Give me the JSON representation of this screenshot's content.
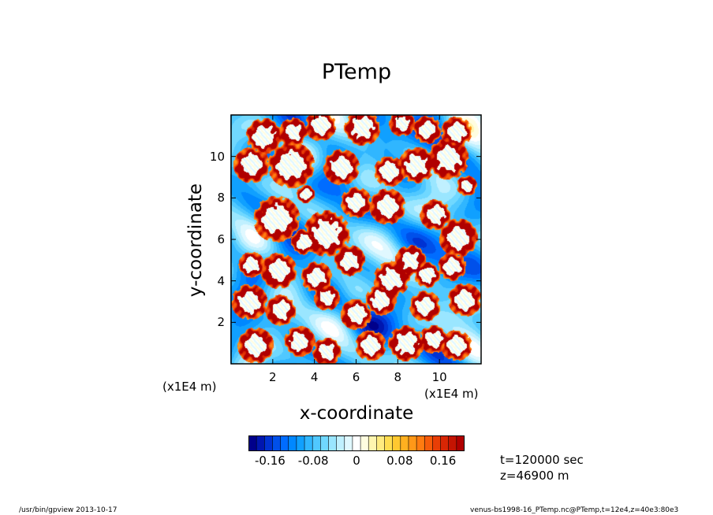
{
  "footer": {
    "left": "/usr/bin/gpview   2013-10-17",
    "right": "venus-bs1998-16_PTemp.nc@PTemp,t=12e4,z=40e3:80e3"
  },
  "annotations": {
    "time": "t=120000  sec",
    "height": "z=46900  m"
  },
  "chart_data": {
    "type": "heatmap",
    "title": "PTemp",
    "xlabel": "x-coordinate",
    "ylabel": "y-coordinate",
    "xunit": "(x1E4 m)",
    "yunit": "(x1E4 m)",
    "xlim": [
      0,
      12
    ],
    "ylim": [
      0,
      12
    ],
    "xticks": [
      "2",
      "4",
      "6",
      "8",
      "10"
    ],
    "yticks": [
      "2",
      "4",
      "6",
      "8",
      "10"
    ],
    "colorbar": {
      "range": [
        -0.2,
        0.2
      ],
      "ticks": [
        "-0.16",
        "-0.08",
        "0",
        "0.08",
        "0.16"
      ],
      "tick_values": [
        -0.16,
        -0.08,
        0,
        0.08,
        0.16
      ],
      "colors": [
        "#00008b",
        "#0016b0",
        "#0032d2",
        "#0050ea",
        "#006cff",
        "#0088ff",
        "#10a0ff",
        "#30b6ff",
        "#50c8ff",
        "#70d8ff",
        "#9ae6ff",
        "#c0f0ff",
        "#e0f8ff",
        "#ffffff",
        "#fffde0",
        "#fff6b0",
        "#ffeb80",
        "#ffdd50",
        "#ffc830",
        "#ffb020",
        "#ff9818",
        "#ff7c10",
        "#f65c0a",
        "#e83e06",
        "#d82604",
        "#c41402",
        "#b00000"
      ]
    },
    "clouds": [
      [
        1.6,
        11.0,
        0.7
      ],
      [
        3.0,
        11.2,
        0.55
      ],
      [
        4.3,
        11.5,
        0.6
      ],
      [
        6.3,
        11.4,
        0.7
      ],
      [
        8.2,
        11.6,
        0.5
      ],
      [
        9.4,
        11.3,
        0.55
      ],
      [
        10.8,
        11.2,
        0.6
      ],
      [
        1.0,
        9.6,
        0.7
      ],
      [
        2.9,
        9.6,
        0.9
      ],
      [
        5.3,
        9.5,
        0.7
      ],
      [
        7.6,
        9.3,
        0.6
      ],
      [
        8.9,
        9.6,
        0.7
      ],
      [
        10.4,
        9.9,
        0.8
      ],
      [
        11.3,
        8.6,
        0.4
      ],
      [
        2.2,
        7.0,
        0.9
      ],
      [
        4.6,
        6.3,
        0.9
      ],
      [
        6.0,
        7.8,
        0.6
      ],
      [
        7.5,
        7.6,
        0.7
      ],
      [
        9.8,
        7.2,
        0.6
      ],
      [
        10.9,
        6.1,
        0.75
      ],
      [
        3.5,
        5.9,
        0.5
      ],
      [
        1.0,
        4.8,
        0.5
      ],
      [
        2.3,
        4.5,
        0.7
      ],
      [
        4.1,
        4.2,
        0.6
      ],
      [
        5.7,
        5.0,
        0.6
      ],
      [
        7.7,
        4.1,
        0.7
      ],
      [
        8.6,
        5.0,
        0.6
      ],
      [
        9.4,
        4.3,
        0.5
      ],
      [
        10.6,
        4.7,
        0.55
      ],
      [
        0.9,
        3.0,
        0.7
      ],
      [
        2.4,
        2.6,
        0.6
      ],
      [
        4.6,
        3.2,
        0.5
      ],
      [
        6.0,
        2.4,
        0.6
      ],
      [
        7.2,
        3.1,
        0.6
      ],
      [
        9.3,
        2.8,
        0.6
      ],
      [
        11.2,
        3.1,
        0.65
      ],
      [
        1.2,
        0.9,
        0.7
      ],
      [
        3.3,
        1.1,
        0.6
      ],
      [
        4.6,
        0.6,
        0.55
      ],
      [
        6.7,
        0.9,
        0.6
      ],
      [
        8.4,
        1.0,
        0.7
      ],
      [
        9.7,
        1.2,
        0.55
      ],
      [
        10.8,
        0.9,
        0.6
      ],
      [
        3.6,
        8.2,
        0.35
      ]
    ]
  }
}
